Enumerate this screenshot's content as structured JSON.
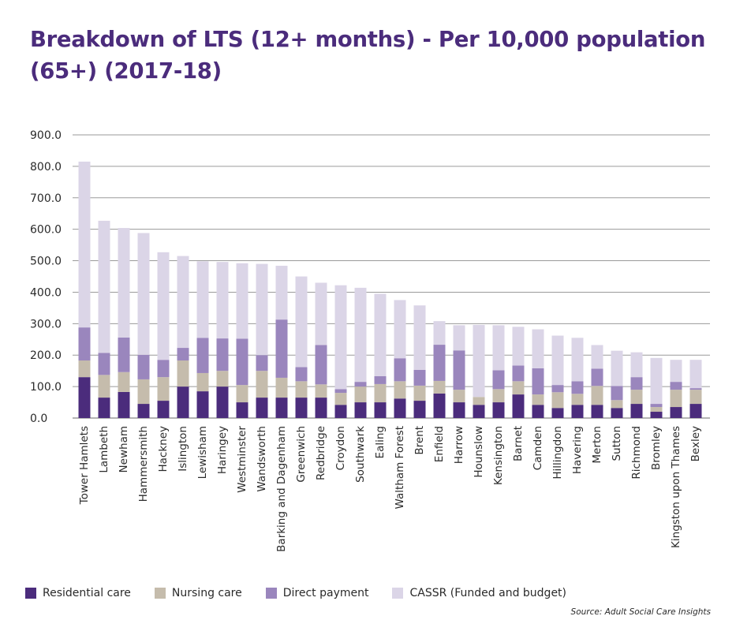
{
  "chart_data": {
    "type": "bar",
    "stacked": true,
    "title": "Breakdown of LTS (12+ months) - Per 10,000 population (65+) (2017-18)",
    "ylim": [
      0,
      900
    ],
    "yticks": [
      "900.0",
      "800.0",
      "700.0",
      "600.0",
      "500.0",
      "400.0",
      "300.0",
      "200.0",
      "100.0",
      "0.0"
    ],
    "grid": true,
    "legend_position": "bottom",
    "categories": [
      "Tower Hamlets",
      "Lambeth",
      "Newham",
      "Hammersmith",
      "Hackney",
      "Islington",
      "Lewisham",
      "Haringey",
      "Westminster",
      "Wandsworth",
      "Barking and Dagenham",
      "Greenwich",
      "Redbridge",
      "Croydon",
      "Southwark",
      "Ealing",
      "Waltham Forest",
      "Brent",
      "Enfield",
      "Harrow",
      "Hounslow",
      "Kensington",
      "Barnet",
      "Camden",
      "Hillingdon",
      "Havering",
      "Merton",
      "Sutton",
      "Richmond",
      "Bromley",
      "Kingston upon Thames",
      "Bexley"
    ],
    "series": [
      {
        "name": "Residential care",
        "color": "#4b2c7c",
        "values": [
          130,
          65,
          83,
          45,
          55,
          100,
          85,
          100,
          50,
          65,
          65,
          65,
          65,
          42,
          50,
          50,
          62,
          55,
          78,
          50,
          42,
          50,
          75,
          42,
          32,
          42,
          42,
          32,
          45,
          20,
          35,
          45
        ]
      },
      {
        "name": "Nursing care",
        "color": "#c5bcac",
        "values": [
          53,
          72,
          63,
          78,
          75,
          83,
          58,
          50,
          55,
          85,
          63,
          52,
          42,
          38,
          50,
          58,
          55,
          48,
          40,
          40,
          25,
          42,
          42,
          33,
          50,
          35,
          60,
          25,
          45,
          15,
          55,
          45
        ]
      },
      {
        "name": "Direct payment",
        "color": "#9a86bd",
        "values": [
          105,
          70,
          110,
          78,
          55,
          40,
          112,
          103,
          147,
          50,
          185,
          45,
          125,
          12,
          15,
          25,
          73,
          50,
          115,
          125,
          0,
          60,
          50,
          83,
          23,
          40,
          55,
          45,
          40,
          10,
          25,
          5
        ]
      },
      {
        "name": "CASSR (Funded and budget)",
        "color": "#dbd5e7",
        "values": [
          527,
          420,
          348,
          387,
          342,
          292,
          243,
          243,
          240,
          290,
          171,
          288,
          198,
          330,
          299,
          262,
          185,
          205,
          75,
          80,
          229,
          143,
          123,
          124,
          157,
          138,
          75,
          112,
          79,
          146,
          70,
          90
        ]
      }
    ]
  },
  "source": "Source: Adult Social Care Insights"
}
